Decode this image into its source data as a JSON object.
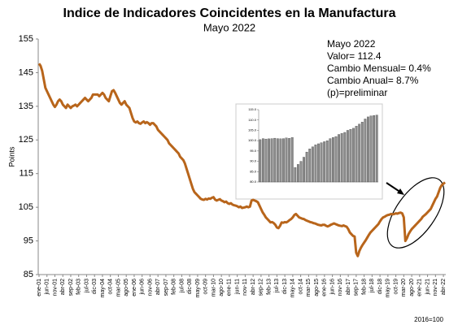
{
  "chart_data": [
    {
      "type": "line",
      "title": "Indice de Indicadores Coincidentes en la Manufactura",
      "subtitle": "Mayo 2022",
      "y_label": "Points",
      "note": "2016=100",
      "annotations": [
        "Mayo 2022",
        "Valor= 112.4",
        "Cambio Mensual= 0.4%",
        "Cambio Anual= 8.7%",
        "(p)=preliminar"
      ],
      "ylim": [
        85,
        155
      ],
      "yticks": [
        85,
        95,
        105,
        115,
        125,
        135,
        145,
        155
      ],
      "grid": false,
      "categories": [
        "ene-01",
        null,
        null,
        null,
        null,
        "jun-01",
        null,
        null,
        null,
        null,
        "nov-01",
        null,
        null,
        null,
        null,
        "abr-02",
        null,
        null,
        null,
        null,
        "sep-02",
        null,
        null,
        null,
        null,
        "feb-03",
        null,
        null,
        null,
        null,
        "jul-03",
        null,
        null,
        null,
        null,
        "dic-03",
        null,
        null,
        null,
        null,
        "may-04",
        null,
        null,
        null,
        null,
        "oct-04",
        null,
        null,
        null,
        null,
        "mar-05",
        null,
        null,
        null,
        null,
        "ago-05",
        null,
        null,
        null,
        null,
        "ene-06",
        null,
        null,
        null,
        null,
        "jun-06",
        null,
        null,
        null,
        null,
        "nov-06",
        null,
        null,
        null,
        null,
        "abr-07",
        null,
        null,
        null,
        null,
        "sep-07",
        null,
        null,
        null,
        null,
        "feb-08",
        null,
        null,
        null,
        null,
        "jul-08",
        null,
        null,
        null,
        null,
        "dic-08",
        null,
        null,
        null,
        null,
        "may-09",
        null,
        null,
        null,
        null,
        "oct-09",
        null,
        null,
        null,
        null,
        "mar-10",
        null,
        null,
        null,
        null,
        "ago-10",
        null,
        null,
        null,
        null,
        "ene-11",
        null,
        null,
        null,
        null,
        "jun-11",
        null,
        null,
        null,
        null,
        "nov-11",
        null,
        null,
        null,
        null,
        "abr-12",
        null,
        null,
        null,
        null,
        "sep-12",
        null,
        null,
        null,
        null,
        "feb-13",
        null,
        null,
        null,
        null,
        "jul-13",
        null,
        null,
        null,
        null,
        "dic-13",
        null,
        null,
        null,
        null,
        "may-14",
        null,
        null,
        null,
        null,
        "oct-14",
        null,
        null,
        null,
        null,
        "mar-15",
        null,
        null,
        null,
        null,
        "ago-15",
        null,
        null,
        null,
        null,
        "ene-16",
        null,
        null,
        null,
        null,
        "jun-16",
        null,
        null,
        null,
        null,
        "nov-16",
        null,
        null,
        null,
        null,
        "abr-17",
        null,
        null,
        null,
        null,
        "sep-17",
        null,
        null,
        null,
        null,
        "feb-18",
        null,
        null,
        null,
        null,
        "jul-18",
        null,
        null,
        null,
        null,
        "dic-18",
        null,
        null,
        null,
        null,
        "may-19",
        null,
        null,
        null,
        null,
        "oct-19",
        null,
        null,
        null,
        null,
        "mar-20",
        null,
        null,
        null,
        null,
        "ago-20",
        null,
        null,
        null,
        null,
        "ene-21",
        null,
        null,
        null,
        null,
        "jun-21",
        null,
        null,
        null,
        null,
        "nov-21",
        null,
        null,
        null,
        null,
        "abr-22",
        null
      ],
      "series": [
        {
          "color": "#b8651b",
          "values": [
            147.7,
            147,
            145.5,
            143,
            140.5,
            139.5,
            138.5,
            137.5,
            136.5,
            135.5,
            134.8,
            135.5,
            136.5,
            137,
            136.5,
            135.5,
            135,
            134.5,
            135.5,
            135,
            134.5,
            135,
            135.2,
            135.5,
            135,
            135.5,
            136,
            136.5,
            137,
            137.5,
            137,
            136.5,
            137,
            137.5,
            138.5,
            138.5,
            138.5,
            138.5,
            138,
            138.5,
            139,
            138.5,
            137.5,
            137,
            136.5,
            138,
            139.5,
            139.8,
            139,
            138,
            137,
            136,
            135.5,
            136,
            136.5,
            135.5,
            135,
            134.5,
            133,
            131.5,
            130.5,
            130.2,
            130.5,
            130,
            129.8,
            130.2,
            130.5,
            130,
            130.3,
            130,
            129.5,
            130,
            130,
            129.5,
            129,
            128,
            127.5,
            127,
            126.5,
            126,
            125.5,
            125,
            124,
            123.5,
            123,
            122.5,
            122,
            121.5,
            121,
            120,
            119.5,
            119,
            118,
            116.5,
            115,
            113.5,
            112,
            110.5,
            109.5,
            109,
            108.5,
            108,
            107.5,
            107.3,
            107.2,
            107.5,
            107.3,
            107.6,
            107.5,
            107.8,
            108,
            107.3,
            107,
            107.2,
            107.4,
            107,
            106.8,
            106.5,
            106.7,
            106.2,
            106,
            106.2,
            105.8,
            105.6,
            105.5,
            105.3,
            105,
            105.2,
            104.8,
            104.9,
            105,
            105.2,
            105,
            105.2,
            107,
            107.2,
            107,
            106.8,
            106.5,
            105.5,
            104.5,
            103.5,
            102.8,
            102,
            101.5,
            101,
            100.5,
            100.6,
            100.3,
            99.8,
            99,
            98.8,
            99.5,
            100.5,
            100.4,
            100.6,
            100.5,
            100.8,
            101.2,
            101.5,
            102,
            102.7,
            103,
            102.5,
            102,
            101.8,
            101.6,
            101.5,
            101.2,
            101,
            100.8,
            100.6,
            100.5,
            100.3,
            100.2,
            100,
            99.8,
            99.7,
            99.6,
            99.8,
            99.8,
            99.5,
            99.3,
            99.5,
            99.8,
            100,
            100.2,
            100,
            99.8,
            99.6,
            99.5,
            99.4,
            99.6,
            99.4,
            99.2,
            98.5,
            97.5,
            97,
            96.5,
            96.3,
            91.5,
            90.5,
            92,
            93,
            93.8,
            94.5,
            95.2,
            96,
            96.8,
            97.5,
            98,
            98.5,
            99,
            99.5,
            100,
            100.8,
            101.5,
            102,
            102.2,
            102.5,
            102.7,
            102.8,
            103,
            102.9,
            103,
            103.2,
            103.1,
            103.3,
            103.4,
            103.2,
            102,
            95,
            95.8,
            97,
            97.8,
            98.5,
            99,
            99.5,
            100,
            100.5,
            101,
            101.5,
            102.2,
            102.6,
            103,
            103.5,
            104,
            104.5,
            105.5,
            106.5,
            107.5,
            108.2,
            109.5,
            110.8,
            111.6,
            112,
            112.4
          ]
        }
      ]
    },
    {
      "type": "bar",
      "color": "#8c8c8c",
      "ylim": [
        80,
        115
      ],
      "yticks": [
        {
          "value": 80,
          "label": "80.0"
        },
        {
          "value": 85,
          "label": "85.0"
        },
        {
          "value": 90,
          "label": "90.0"
        },
        {
          "value": 95,
          "label": "95.0"
        },
        {
          "value": 100,
          "label": "100.0"
        },
        {
          "value": 105,
          "label": "105.0"
        },
        {
          "value": 110,
          "label": "110.0"
        },
        {
          "value": 115,
          "label": "115.0"
        }
      ],
      "categories": [
        null,
        null,
        null,
        null,
        null,
        null,
        null,
        null,
        null,
        null,
        null,
        null,
        null,
        null,
        null,
        null,
        null,
        null,
        null,
        null,
        null,
        null,
        null,
        null,
        null,
        null,
        null,
        null,
        null,
        null,
        null,
        null,
        null,
        null,
        null,
        null,
        null,
        null,
        null,
        null,
        null
      ],
      "values": [
        100.5,
        101,
        100.8,
        100.9,
        101,
        101.2,
        101,
        100.9,
        101,
        101.3,
        101.1,
        101.5,
        87,
        88.5,
        90,
        92,
        94.5,
        96,
        97,
        98,
        98.5,
        99,
        99.5,
        100,
        101,
        101.5,
        102,
        103,
        103.5,
        104,
        105,
        105.5,
        106,
        107,
        108,
        109,
        110.5,
        111.5,
        112,
        112.2,
        112.4
      ]
    }
  ]
}
